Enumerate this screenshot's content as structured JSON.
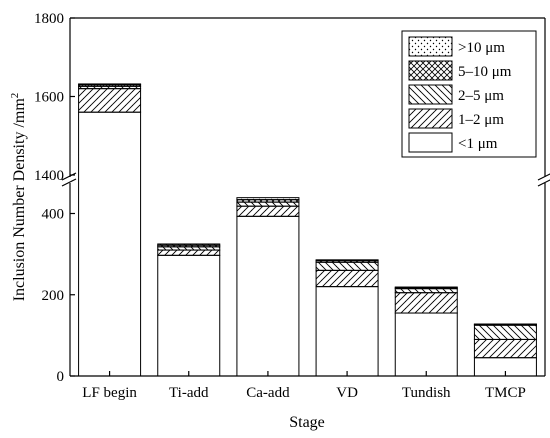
{
  "chart_data": {
    "type": "bar",
    "stacked": true,
    "axis_break": {
      "lower": [
        0,
        480
      ],
      "upper": [
        1400,
        1800
      ]
    },
    "xlabel": "Stage",
    "ylabel": "Inclusion Number Density /mm",
    "ylabel_superscript": "2",
    "categories": [
      "LF begin",
      "Ti-add",
      "Ca-add",
      "VD",
      "Tundish",
      "TMCP"
    ],
    "yticks_lower": [
      "0",
      "200",
      "400"
    ],
    "yticks_upper": [
      "1400",
      "1600",
      "1800"
    ],
    "legend_position": "top-right",
    "series": [
      {
        "name": "<1 μm",
        "pattern": "blank",
        "values": [
          1560,
          297,
          393,
          220,
          155,
          45
        ]
      },
      {
        "name": "1–2 μm",
        "pattern": "fwd-hatch",
        "values": [
          60,
          13,
          25,
          40,
          50,
          45
        ]
      },
      {
        "name": "2–5 μm",
        "pattern": "back-hatch",
        "values": [
          6,
          8,
          10,
          20,
          10,
          35
        ]
      },
      {
        "name": "5–10 μm",
        "pattern": "cross-hatch",
        "values": [
          4,
          4,
          6,
          4,
          2,
          2
        ]
      },
      {
        "name": ">10 μm",
        "pattern": "dots",
        "values": [
          2,
          3,
          5,
          2,
          2,
          1
        ]
      }
    ]
  }
}
